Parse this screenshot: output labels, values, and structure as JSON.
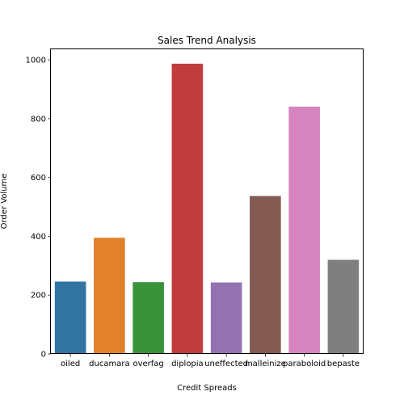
{
  "chart_data": {
    "type": "bar",
    "title": "Sales Trend Analysis",
    "xlabel": "Credit Spreads",
    "ylabel": "Order Volume",
    "categories": [
      "oiled",
      "ducamara",
      "overfag",
      "diplopia",
      "uneffected",
      "malleinize",
      "paraboloid",
      "bepaste"
    ],
    "values": [
      246,
      395,
      244,
      987,
      243,
      537,
      841,
      320
    ],
    "colors": [
      "#3274a1",
      "#e1812c",
      "#3a923a",
      "#c03d3e",
      "#9372b2",
      "#845b53",
      "#d684bd",
      "#7f7f7f"
    ],
    "ylim": [
      0,
      1036
    ],
    "yticks": [
      0,
      200,
      400,
      600,
      800,
      1000
    ],
    "grid": false,
    "legend": "none"
  }
}
